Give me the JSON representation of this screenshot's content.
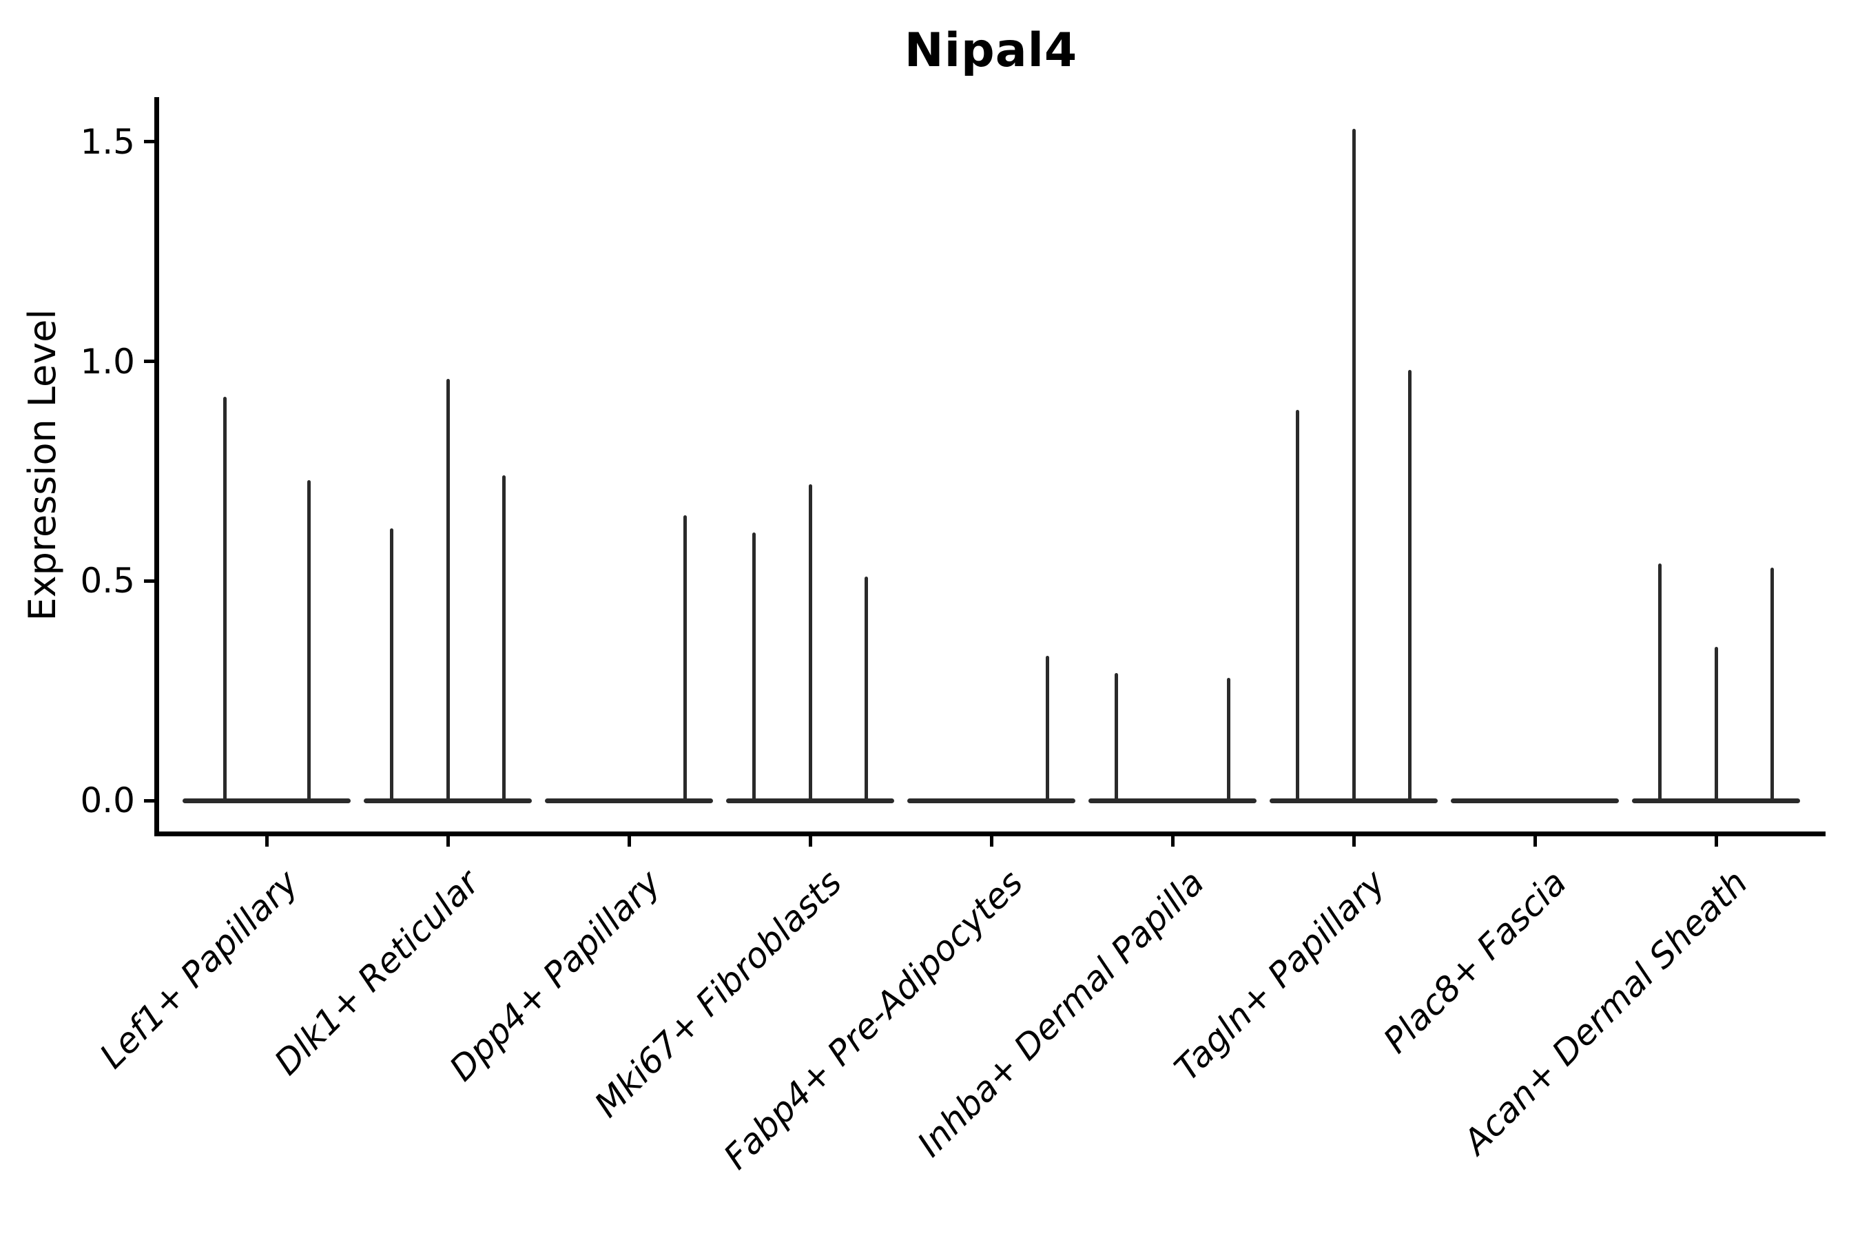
{
  "chart_data": {
    "type": "violin",
    "title": "Nipal4",
    "ylabel": "Expression Level",
    "xlabel": "",
    "ytick_labels": [
      "0.0",
      "0.5",
      "1.0",
      "1.5"
    ],
    "yticks": [
      0.0,
      0.5,
      1.0,
      1.5
    ],
    "ylim": [
      -0.07,
      1.6
    ],
    "grid": false,
    "legend": false,
    "categories": [
      "Lef1+ Papillary",
      "Dlk1+ Reticular",
      "Dpp4+ Papillary",
      "Mki67+ Fibroblasts",
      "Fabp4+ Pre-Adipocytes",
      "Inhba+ Dermal Papilla",
      "Tagln+ Papillary",
      "Plac8+ Fascia",
      "Acan+ Dermal Sheath"
    ],
    "series": [
      {
        "category": "Lef1+ Papillary",
        "violin_maxima": [
          0.92,
          0.73
        ]
      },
      {
        "category": "Dlk1+ Reticular",
        "violin_maxima": [
          0.62,
          0.96,
          0.74
        ]
      },
      {
        "category": "Dpp4+ Papillary",
        "violin_maxima": [
          0,
          0,
          0.65
        ]
      },
      {
        "category": "Mki67+ Fibroblasts",
        "violin_maxima": [
          0.61,
          0.72,
          0.51
        ]
      },
      {
        "category": "Fabp4+ Pre-Adipocytes",
        "violin_maxima": [
          0,
          0,
          0.33
        ]
      },
      {
        "category": "Inhba+ Dermal Papilla",
        "violin_maxima": [
          0.29,
          0,
          0.28
        ]
      },
      {
        "category": "Tagln+ Papillary",
        "violin_maxima": [
          0.89,
          1.53,
          0.98
        ]
      },
      {
        "category": "Plac8+ Fascia",
        "violin_maxima": [
          0,
          0,
          0
        ]
      },
      {
        "category": "Acan+ Dermal Sheath",
        "violin_maxima": [
          0.54,
          0.35,
          0.53
        ]
      }
    ]
  },
  "style": {
    "violin_color": "#2a2a2a",
    "axis_color": "#000000",
    "background": "#ffffff"
  }
}
